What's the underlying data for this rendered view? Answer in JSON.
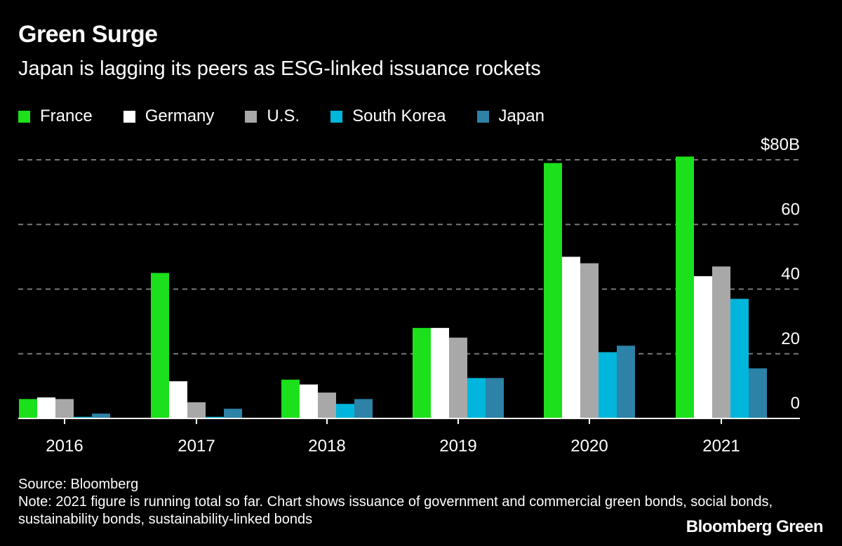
{
  "header": {
    "title": "Green Surge",
    "subtitle": "Japan is lagging its peers as ESG-linked issuance rockets"
  },
  "footer": {
    "source": "Source: Bloomberg",
    "note": "Note: 2021 figure is running total so far. Chart shows issuance of government and commercial green bonds, social bonds, sustainability bonds, sustainability-linked bonds",
    "brand": "Bloomberg Green"
  },
  "colors": {
    "background": "#000000",
    "grid": "#7a7a7a",
    "axis": "#ffffff"
  },
  "chart_data": {
    "type": "bar",
    "title": "Green Surge",
    "subtitle": "Japan is lagging its peers as ESG-linked issuance rockets",
    "categories": [
      "2016",
      "2017",
      "2018",
      "2019",
      "2020",
      "2021"
    ],
    "series": [
      {
        "name": "France",
        "color": "#1be01b",
        "values": [
          6,
          45,
          12,
          28,
          79,
          81
        ]
      },
      {
        "name": "Germany",
        "color": "#ffffff",
        "values": [
          6.5,
          11.5,
          10.5,
          28,
          50,
          44
        ]
      },
      {
        "name": "U.S.",
        "color": "#a8a8a8",
        "values": [
          6,
          5,
          8,
          25,
          48,
          47
        ]
      },
      {
        "name": "South Korea",
        "color": "#00b6dc",
        "values": [
          0.5,
          0.5,
          4.5,
          12.5,
          20.5,
          37
        ]
      },
      {
        "name": "Japan",
        "color": "#2d82a8",
        "values": [
          1.5,
          3,
          6,
          12.5,
          22.5,
          15.5
        ]
      }
    ],
    "yticks": [
      "0",
      "20",
      "40",
      "60",
      "$80B"
    ],
    "ytick_values": [
      0,
      20,
      40,
      60,
      80
    ],
    "ylim": [
      0,
      80
    ],
    "xlabel": "",
    "ylabel": "",
    "grid": true,
    "y_axis_side": "right",
    "legend_position": "top-left"
  }
}
